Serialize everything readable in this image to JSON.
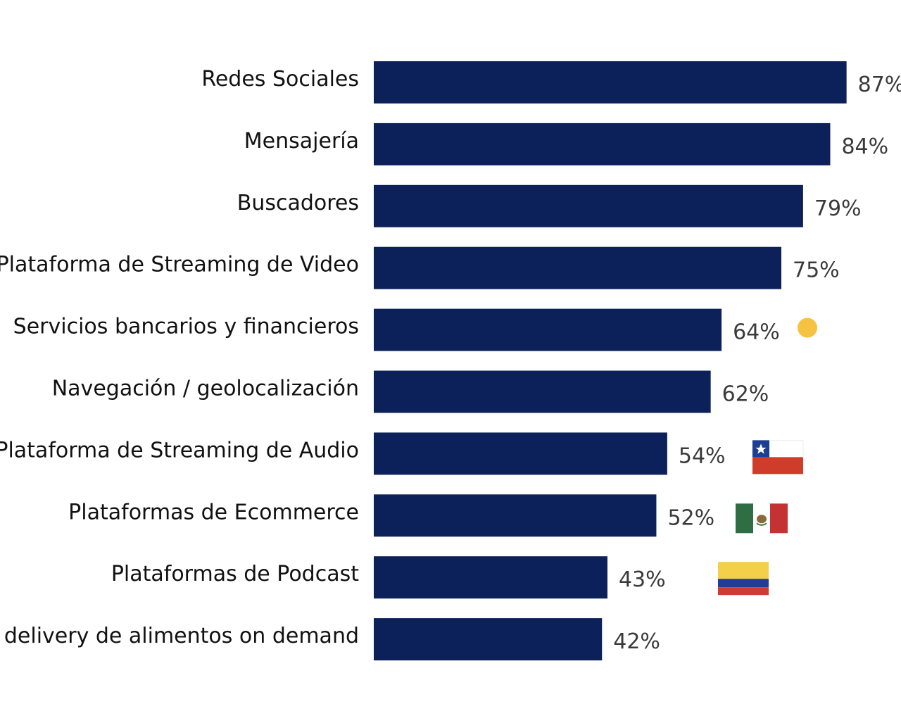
{
  "chart_data": {
    "type": "bar",
    "orientation": "horizontal",
    "categories": [
      "Redes Sociales",
      "Mensajería",
      "Buscadores",
      "Plataforma de Streaming de Video",
      "Servicios bancarios y financieros",
      "Navegación / geolocalización",
      "Plataforma de Streaming de Audio",
      "Plataformas de Ecommerce",
      "Plataformas de Podcast",
      "Apps de delivery de alimentos on demand"
    ],
    "values": [
      87,
      84,
      79,
      75,
      64,
      62,
      54,
      52,
      43,
      42
    ],
    "value_labels": [
      "87%",
      "84%",
      "79%",
      "75%",
      "64%",
      "62%",
      "54%",
      "52%",
      "43%",
      "42%"
    ],
    "unit": "%",
    "xlim": [
      0,
      100
    ],
    "grid": false,
    "bar_color": "#0c2159",
    "markers": [
      {
        "category_index": 4,
        "icon": "yellow-dot-icon",
        "color": "#f5c242"
      },
      {
        "category_index": 6,
        "icon": "chile-flag-icon"
      },
      {
        "category_index": 7,
        "icon": "mexico-flag-icon"
      },
      {
        "category_index": 8,
        "icon": "colombia-flag-icon"
      }
    ]
  }
}
